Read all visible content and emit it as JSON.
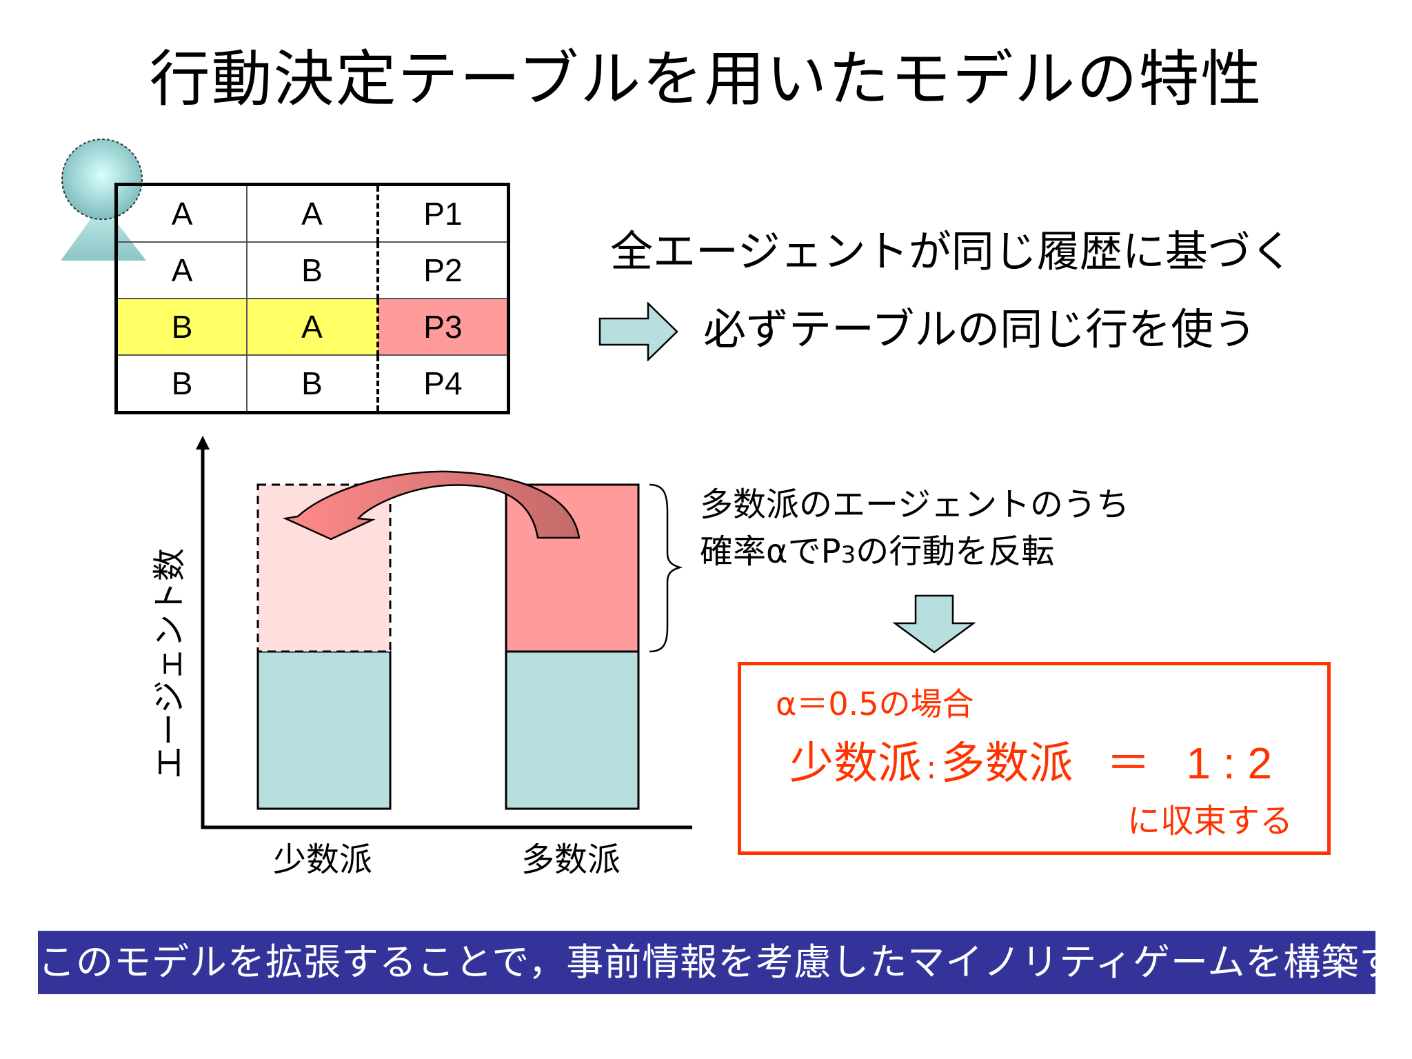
{
  "title": "行動決定テーブルを用いたモデルの特性",
  "table": {
    "rows": [
      [
        "A",
        "A",
        "P1"
      ],
      [
        "A",
        "B",
        "P2"
      ],
      [
        "B",
        "A",
        "P3"
      ],
      [
        "B",
        "B",
        "P4"
      ]
    ],
    "highlighted_row": 3
  },
  "statement": {
    "line1": "全エージェントが同じ履歴に基づく",
    "line2": "必ずテーブルの同じ行を使う"
  },
  "chart": {
    "ylabel": "エージェント数",
    "categories": [
      "少数派",
      "多数派"
    ]
  },
  "annotation": {
    "line1": "多数派のエージェントのうち",
    "line2_prefix": "確率αでP",
    "line2_sub": "3",
    "line2_suffix": "の行動を反転"
  },
  "result": {
    "condition": "α＝0.5の場合",
    "ratio_left": "少数派",
    "ratio_sep": ":",
    "ratio_mid": "多数派",
    "equals": "＝",
    "ratio_value": "1 : 2",
    "converge": "に収束する"
  },
  "banner": "このモデルを拡張することで，事前情報を考慮したマイノリティゲームを構築する",
  "colors": {
    "teal": "#b8dfe0",
    "pink": "#ff9b9b",
    "light_pink": "#ffdede",
    "yellow": "#ffff66",
    "orange_red": "#ff3300",
    "banner": "#33339a"
  }
}
